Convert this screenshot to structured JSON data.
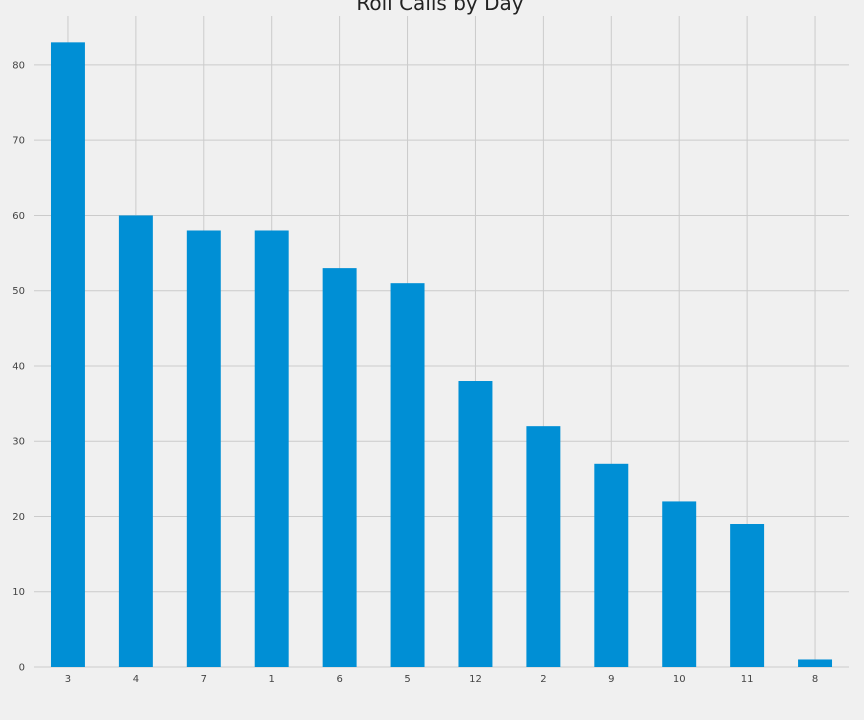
{
  "chart_data": {
    "type": "bar",
    "title": "Roll Calls by Day",
    "xlabel": "",
    "ylabel": "",
    "categories": [
      "3",
      "4",
      "7",
      "1",
      "6",
      "5",
      "12",
      "2",
      "9",
      "10",
      "11",
      "8"
    ],
    "values": [
      83,
      60,
      58,
      58,
      53,
      51,
      38,
      32,
      27,
      22,
      19,
      1
    ],
    "ylim": [
      0,
      86.5
    ],
    "yticks": [
      "0",
      "10",
      "20",
      "30",
      "40",
      "50",
      "60",
      "70",
      "80"
    ],
    "grid": true,
    "legend": "none",
    "colors": {
      "bar": "#008fd5",
      "background": "#f0f0f0",
      "grid": "#cbcbcb"
    }
  }
}
